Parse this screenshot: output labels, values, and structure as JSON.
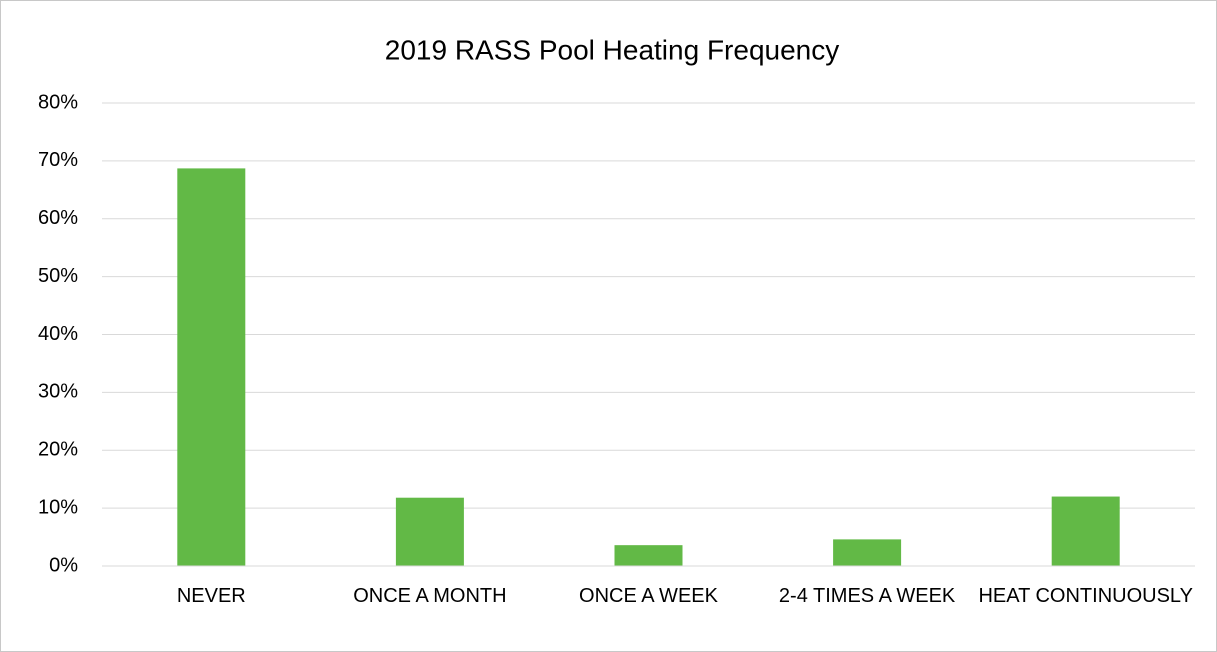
{
  "chart_data": {
    "type": "bar",
    "title": "2019 RASS Pool Heating Frequency",
    "categories": [
      "NEVER",
      "ONCE A MONTH",
      "ONCE A WEEK",
      "2-4 TIMES A WEEK",
      "HEAT CONTINUOUSLY"
    ],
    "values": [
      68.7,
      11.8,
      3.6,
      4.6,
      12.0
    ],
    "color": "#62b946",
    "ylim": [
      0,
      80
    ],
    "yticks": [
      {
        "value": 0,
        "label": "0%"
      },
      {
        "value": 10,
        "label": "10%"
      },
      {
        "value": 20,
        "label": "20%"
      },
      {
        "value": 30,
        "label": "30%"
      },
      {
        "value": 40,
        "label": "40%"
      },
      {
        "value": 50,
        "label": "50%"
      },
      {
        "value": 60,
        "label": "60%"
      },
      {
        "value": 70,
        "label": "70%"
      },
      {
        "value": 80,
        "label": "80%"
      }
    ],
    "grid": true
  }
}
